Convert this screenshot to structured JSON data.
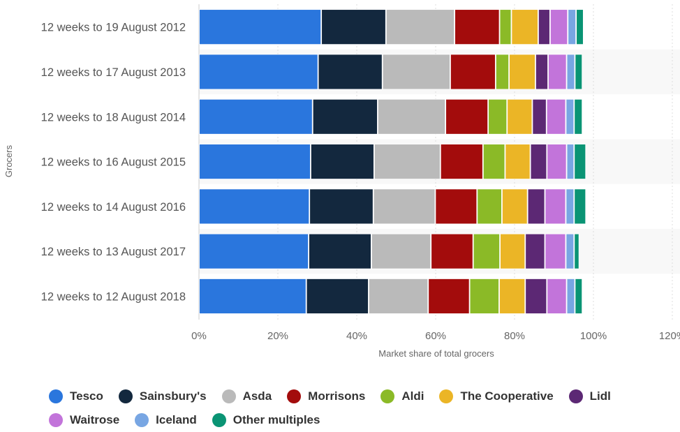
{
  "chart_data": {
    "type": "bar",
    "orientation": "horizontal",
    "stacked": true,
    "categories": [
      "12 weeks to 19 August 2012",
      "12 weeks to 17 August 2013",
      "12 weeks to 18 August 2014",
      "12 weeks to 16 August 2015",
      "12 weeks to 14 August 2016",
      "12 weeks to 13 August 2017",
      "12 weeks to 12 August 2018"
    ],
    "series": [
      {
        "name": "Tesco",
        "color": "#2a76dd",
        "values": [
          31.0,
          30.2,
          28.8,
          28.3,
          28.0,
          27.8,
          27.2
        ]
      },
      {
        "name": "Sainsbury's",
        "color": "#13283e",
        "values": [
          16.4,
          16.3,
          16.5,
          16.1,
          16.2,
          15.9,
          15.8
        ]
      },
      {
        "name": "Asda",
        "color": "#bababa",
        "values": [
          17.4,
          17.2,
          17.2,
          16.8,
          15.7,
          15.1,
          15.1
        ]
      },
      {
        "name": "Morrisons",
        "color": "#a30c0c",
        "values": [
          11.4,
          11.5,
          10.8,
          10.8,
          10.6,
          10.7,
          10.5
        ]
      },
      {
        "name": "Aldi",
        "color": "#8bba27",
        "values": [
          3.0,
          3.4,
          4.8,
          5.6,
          6.3,
          6.8,
          7.5
        ]
      },
      {
        "name": "The Cooperative",
        "color": "#ebb526",
        "values": [
          6.8,
          6.7,
          6.4,
          6.4,
          6.5,
          6.4,
          6.6
        ]
      },
      {
        "name": "Lidl",
        "color": "#5c2874",
        "values": [
          3.0,
          3.2,
          3.6,
          4.2,
          4.4,
          5.0,
          5.5
        ]
      },
      {
        "name": "Waitrose",
        "color": "#c274da",
        "values": [
          4.5,
          4.7,
          4.9,
          5.0,
          5.3,
          5.3,
          5.0
        ]
      },
      {
        "name": "Iceland",
        "color": "#78a6e3",
        "values": [
          2.1,
          2.1,
          2.1,
          1.9,
          2.1,
          2.1,
          2.1
        ]
      },
      {
        "name": "Other multiples",
        "color": "#0a9474",
        "values": [
          1.9,
          1.9,
          2.1,
          3.0,
          3.0,
          1.3,
          1.9
        ]
      }
    ],
    "title": "",
    "xlabel": "Market share of total grocers",
    "ylabel": "Grocers",
    "xlim": [
      0,
      120
    ],
    "xticks": [
      "0%",
      "20%",
      "40%",
      "60%",
      "80%",
      "100%",
      "120%"
    ],
    "grid": true,
    "legend_position": "bottom"
  }
}
